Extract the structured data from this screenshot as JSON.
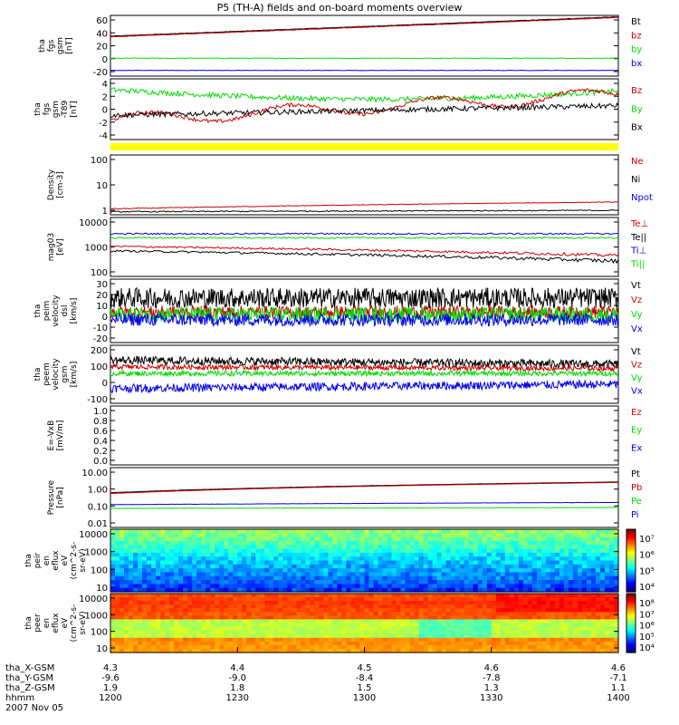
{
  "title": "P5 (TH-A) fields and on-board moments overview",
  "date_label": "2007 Nov 05",
  "colors": {
    "black": "#000000",
    "red": "#cc0000",
    "green": "#00dd00",
    "blue": "#0000ee",
    "yellow": "#ffff00"
  },
  "chart_data": [
    {
      "type": "line",
      "ylabel": [
        "tha",
        "fgs",
        "gsm",
        "[nT]"
      ],
      "yticks": [
        "60",
        "40",
        "20",
        "0",
        "-20"
      ],
      "ylim": [
        -20,
        65
      ],
      "series": [
        {
          "name": "Bt",
          "color": "black"
        },
        {
          "name": "bz",
          "color": "red"
        },
        {
          "name": "by",
          "color": "green"
        },
        {
          "name": "bx",
          "color": "blue"
        }
      ]
    },
    {
      "type": "line",
      "ylabel": [
        "tha",
        "fgs",
        "gsm",
        "-T89",
        "[nT]"
      ],
      "yticks": [
        "4",
        "2",
        "0",
        "-2",
        "-4"
      ],
      "ylim": [
        -5,
        4.5
      ],
      "series": [
        {
          "name": "Bz",
          "color": "red"
        },
        {
          "name": "By",
          "color": "green"
        },
        {
          "name": "Bx",
          "color": "black"
        }
      ]
    },
    {
      "type": "line",
      "ylabel": [
        "Density",
        "[cm-3]"
      ],
      "yticks": [
        "100",
        "10",
        "1"
      ],
      "scale": "log",
      "ylim": [
        0.5,
        200
      ],
      "series": [
        {
          "name": "Ne",
          "color": "red"
        },
        {
          "name": "Ni",
          "color": "black"
        },
        {
          "name": "Npot",
          "color": "blue"
        }
      ]
    },
    {
      "type": "line",
      "ylabel": [
        "mag03",
        "[eV]"
      ],
      "yticks": [
        "10000",
        "1000",
        "100"
      ],
      "scale": "log",
      "ylim": [
        100,
        12000
      ],
      "series": [
        {
          "name": "Te⊥",
          "color": "red"
        },
        {
          "name": "Te||",
          "color": "black"
        },
        {
          "name": "Ti⊥",
          "color": "blue"
        },
        {
          "name": "Ti||",
          "color": "green"
        }
      ]
    },
    {
      "type": "line",
      "ylabel": [
        "tha",
        "peim",
        "velocity",
        "dsl",
        "[km/s]"
      ],
      "yticks": [
        "30",
        "20",
        "10",
        "0",
        "-10",
        "-20"
      ],
      "ylim": [
        -20,
        30
      ],
      "series": [
        {
          "name": "Vt",
          "color": "black"
        },
        {
          "name": "Vz",
          "color": "red"
        },
        {
          "name": "Vy",
          "color": "green"
        },
        {
          "name": "Vx",
          "color": "blue"
        }
      ]
    },
    {
      "type": "line",
      "ylabel": [
        "tha",
        "peem",
        "velocity",
        "gsm",
        "[km/s]"
      ],
      "yticks": [
        "200",
        "100",
        "0",
        "-100"
      ],
      "ylim": [
        -150,
        200
      ],
      "series": [
        {
          "name": "Vt",
          "color": "black"
        },
        {
          "name": "Vz",
          "color": "red"
        },
        {
          "name": "Vy",
          "color": "green"
        },
        {
          "name": "Vx",
          "color": "blue"
        }
      ]
    },
    {
      "type": "line",
      "ylabel": [
        "E=-VxB",
        "[mV/m]"
      ],
      "yticks": [
        "1.0",
        "0.8",
        "0.6",
        "0.4",
        "0.2",
        "0.0"
      ],
      "ylim": [
        0,
        1
      ],
      "series": [
        {
          "name": "Ez",
          "color": "red"
        },
        {
          "name": "Ey",
          "color": "green"
        },
        {
          "name": "Ex",
          "color": "blue"
        }
      ]
    },
    {
      "type": "line",
      "ylabel": [
        "Pressure",
        "[nPa]"
      ],
      "yticks": [
        "10.00",
        "1.00",
        "0.10",
        "0.01"
      ],
      "scale": "log",
      "ylim": [
        0.01,
        10
      ],
      "series": [
        {
          "name": "Pt",
          "color": "black"
        },
        {
          "name": "Pb",
          "color": "red"
        },
        {
          "name": "Pe",
          "color": "green"
        },
        {
          "name": "Pi",
          "color": "blue"
        }
      ]
    },
    {
      "type": "heatmap",
      "ylabel": [
        "tha",
        "peir",
        "en",
        "eflux",
        "eV",
        "(cm^2-s-",
        "sr-eV)"
      ],
      "yticks": [
        "10000",
        "1000",
        "100",
        "10"
      ],
      "scale": "log",
      "colorbar_ticks": [
        "10⁷",
        "10⁶",
        "10⁵",
        "10⁴"
      ]
    },
    {
      "type": "heatmap",
      "ylabel": [
        "tha",
        "peer",
        "en",
        "eflux",
        "eV",
        "(cm^2-s-",
        "sr-eV)"
      ],
      "yticks": [
        "10000",
        "1000",
        "100",
        "10"
      ],
      "scale": "log",
      "colorbar_ticks": [
        "10⁸",
        "10⁷",
        "10⁶",
        "10⁵",
        "10⁴"
      ]
    }
  ],
  "x_axis": {
    "row_labels": [
      "tha_X-GSM",
      "tha_Y-GSM",
      "tha_Z-GSM",
      "hhmm"
    ],
    "ticks": [
      {
        "X": "4.3",
        "Y": "-9.6",
        "Z": "1.9",
        "hhmm": "1200"
      },
      {
        "X": "4.4",
        "Y": "-9.0",
        "Z": "1.8",
        "hhmm": "1230"
      },
      {
        "X": "4.5",
        "Y": "-8.4",
        "Z": "1.5",
        "hhmm": "1300"
      },
      {
        "X": "4.6",
        "Y": "-7.8",
        "Z": "1.3",
        "hhmm": "1330"
      },
      {
        "X": "4.6",
        "Y": "-7.1",
        "Z": "1.1",
        "hhmm": "1400"
      }
    ]
  }
}
